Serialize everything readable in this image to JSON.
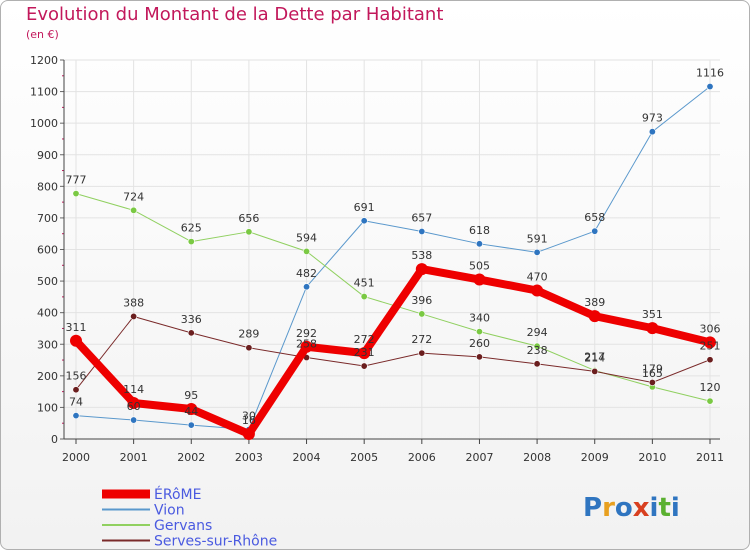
{
  "header": {
    "title": "Evolution du Montant de la Dette par Habitant",
    "subtitle": "(en €)"
  },
  "logo": {
    "text": "Proxiti"
  },
  "colors": {
    "title": "#c2185b",
    "grid": "#e3e3e3",
    "legend_text": "#4a5ae0"
  },
  "chart_data": {
    "type": "line",
    "title": "Evolution du Montant de la Dette par Habitant",
    "subtitle": "(en €)",
    "xlabel": "",
    "ylabel": "",
    "ylim": [
      0,
      1200
    ],
    "yticks": [
      0,
      100,
      200,
      300,
      400,
      500,
      600,
      700,
      800,
      900,
      1000,
      1100,
      1200
    ],
    "grid": true,
    "legend_position": "bottom-left",
    "categories": [
      "2000",
      "2001",
      "2002",
      "2003",
      "2004",
      "2005",
      "2006",
      "2007",
      "2008",
      "2009",
      "2010",
      "2011"
    ],
    "series": [
      {
        "name": "Vion",
        "color": "#5a98cc",
        "marker": "#2f75c0",
        "width": 1,
        "values": [
          74,
          60,
          44,
          30,
          482,
          691,
          657,
          618,
          591,
          658,
          973,
          1116
        ]
      },
      {
        "name": "Gervans",
        "color": "#90d060",
        "marker": "#7ac943",
        "width": 1,
        "values": [
          777,
          724,
          625,
          656,
          594,
          451,
          396,
          340,
          294,
          217,
          165,
          120
        ]
      },
      {
        "name": "Serves-sur-Rhône",
        "color": "#7a2a2a",
        "marker": "#6b1e1e",
        "width": 1,
        "values": [
          156,
          388,
          336,
          289,
          258,
          231,
          272,
          260,
          238,
          214,
          179,
          251
        ]
      },
      {
        "name": "ÉRôME",
        "color": "#ee0000",
        "marker": "#ee0000",
        "width": 8,
        "values": [
          311,
          114,
          95,
          16,
          292,
          272,
          538,
          505,
          470,
          389,
          351,
          306
        ]
      }
    ],
    "legend": [
      "ÉRôME",
      "Vion",
      "Gervans",
      "Serves-sur-Rhône"
    ]
  }
}
